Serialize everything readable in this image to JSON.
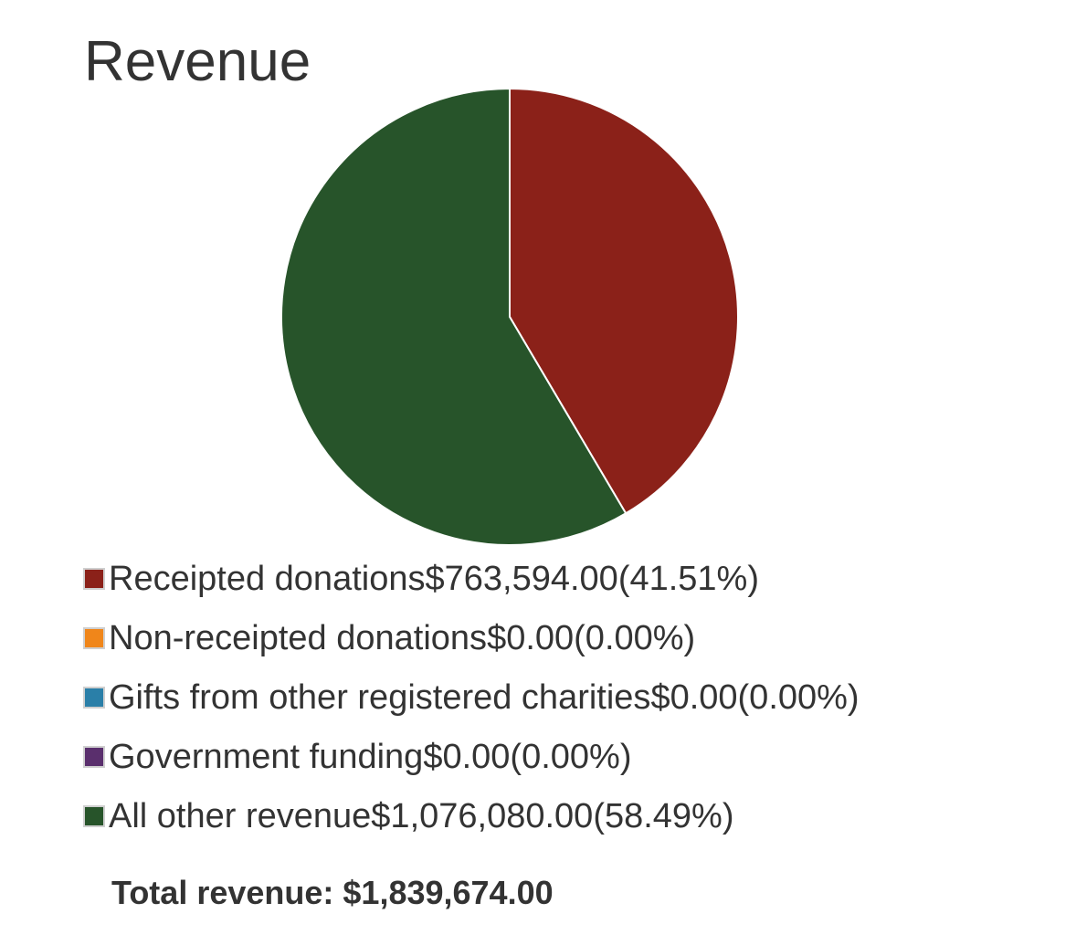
{
  "title": "Revenue",
  "chart_data": {
    "type": "pie",
    "title": "Revenue",
    "slices": [
      {
        "label": "Receipted donations",
        "amount": "$763,594.00",
        "percent_text": "(41.51%)",
        "value": 763594.0,
        "percent": 41.51,
        "color": "#8b2119"
      },
      {
        "label": "Non-receipted donations",
        "amount": "$0.00",
        "percent_text": "(0.00%)",
        "value": 0.0,
        "percent": 0.0,
        "color": "#f0861a"
      },
      {
        "label": "Gifts from other registered charities",
        "amount": "$0.00",
        "percent_text": "(0.00%)",
        "value": 0.0,
        "percent": 0.0,
        "color": "#2a7fa8"
      },
      {
        "label": "Government funding",
        "amount": "$0.00",
        "percent_text": "(0.00%)",
        "value": 0.0,
        "percent": 0.0,
        "color": "#5a2f6d"
      },
      {
        "label": "All other revenue",
        "amount": "$1,076,080.00",
        "percent_text": "(58.49%)",
        "value": 1076080.0,
        "percent": 58.49,
        "color": "#27542a"
      }
    ],
    "legend_position": "bottom",
    "total_label": "Total revenue:",
    "total_value": "$1,839,674.00"
  }
}
